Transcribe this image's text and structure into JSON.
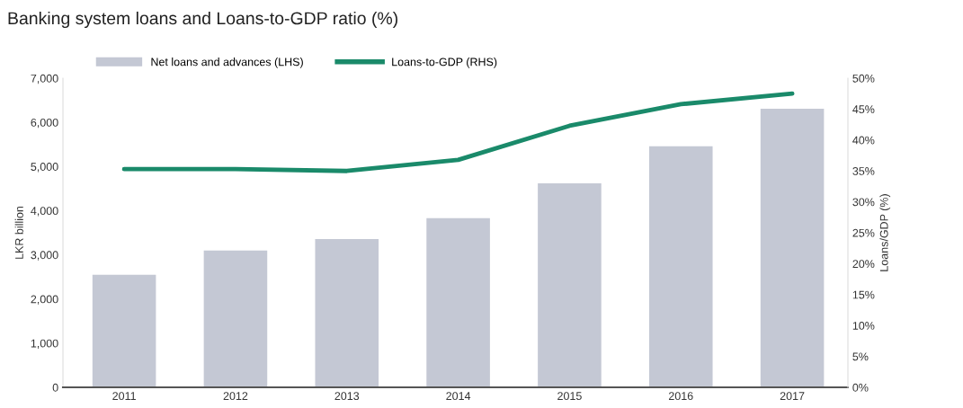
{
  "chart_data": {
    "type": "bar",
    "title": "Banking system loans and Loans-to-GDP ratio (%)",
    "ylabel": "LKR billion",
    "y2label": "Loans/GDP (%)",
    "categories": [
      "2011",
      "2012",
      "2013",
      "2014",
      "2015",
      "2016",
      "2017"
    ],
    "series": [
      {
        "name": "Net loans and advances (LHS)",
        "color": "#c4c8d4",
        "values": [
          2550,
          3100,
          3360,
          3830,
          4620,
          5460,
          6310
        ]
      },
      {
        "name": "Loans-to-GDP (RHS)",
        "type": "line",
        "axis": "y2",
        "color": "#1a8a6a",
        "values": [
          35.3,
          35.3,
          35.0,
          36.8,
          42.3,
          45.8,
          47.5
        ]
      }
    ],
    "ylim": [
      0,
      7000
    ],
    "yticks": [
      {
        "value": 0,
        "label": "0"
      },
      {
        "value": 1000,
        "label": "1,000"
      },
      {
        "value": 2000,
        "label": "2,000"
      },
      {
        "value": 3000,
        "label": "3,000"
      },
      {
        "value": 4000,
        "label": "4,000"
      },
      {
        "value": 5000,
        "label": "5,000"
      },
      {
        "value": 6000,
        "label": "6,000"
      },
      {
        "value": 7000,
        "label": "7,000"
      }
    ],
    "y2lim": [
      0,
      50
    ],
    "y2ticks": [
      {
        "value": 0,
        "label": "0%"
      },
      {
        "value": 5,
        "label": "5%"
      },
      {
        "value": 10,
        "label": "10%"
      },
      {
        "value": 15,
        "label": "15%"
      },
      {
        "value": 20,
        "label": "20%"
      },
      {
        "value": 25,
        "label": "25%"
      },
      {
        "value": 30,
        "label": "30%"
      },
      {
        "value": 35,
        "label": "35%"
      },
      {
        "value": 40,
        "label": "40%"
      },
      {
        "value": 45,
        "label": "45%"
      },
      {
        "value": 50,
        "label": "50%"
      }
    ],
    "grid": false,
    "legend": "top",
    "marker": "none",
    "line_style": "solid"
  }
}
